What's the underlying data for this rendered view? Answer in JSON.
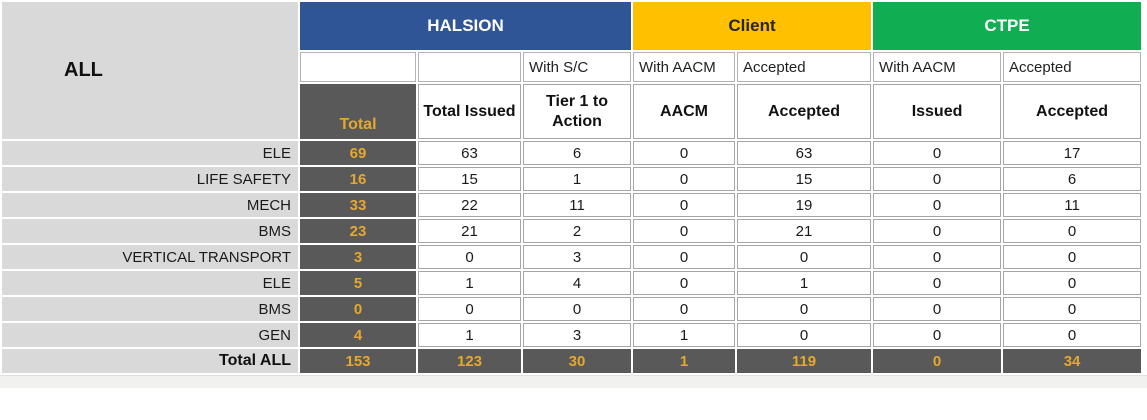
{
  "colors": {
    "halsion_blue": "#2F5597",
    "halsion_text": "#FFFFFF",
    "client_gold": "#FFC000",
    "client_text": "#262626",
    "ctpe_green": "#10AD52",
    "ctpe_text": "#FFFFFF",
    "dark_gray_cell": "#595959",
    "gold_text": "#E5A82F",
    "label_gray": "#D9D9D9"
  },
  "table": {
    "corner_label": "ALL",
    "groups": [
      {
        "label": "HALSION"
      },
      {
        "label": "Client"
      },
      {
        "label": "CTPE"
      }
    ],
    "subheaders": [
      "",
      "",
      "With S/C",
      "With AACM",
      "Accepted",
      "With AACM",
      "Accepted"
    ],
    "columns": [
      "Total",
      "Total Issued",
      "Tier 1 to Action",
      "AACM",
      "Accepted",
      "Issued",
      "Accepted"
    ],
    "rows": [
      {
        "label": "ELE",
        "values": [
          69,
          63,
          6,
          0,
          63,
          0,
          17
        ]
      },
      {
        "label": "LIFE SAFETY",
        "values": [
          16,
          15,
          1,
          0,
          15,
          0,
          6
        ]
      },
      {
        "label": "MECH",
        "values": [
          33,
          22,
          11,
          0,
          19,
          0,
          11
        ]
      },
      {
        "label": "BMS",
        "values": [
          23,
          21,
          2,
          0,
          21,
          0,
          0
        ]
      },
      {
        "label": "VERTICAL TRANSPORT",
        "values": [
          3,
          0,
          3,
          0,
          0,
          0,
          0
        ]
      },
      {
        "label": "ELE",
        "values": [
          5,
          1,
          4,
          0,
          1,
          0,
          0
        ]
      },
      {
        "label": "BMS",
        "values": [
          0,
          0,
          0,
          0,
          0,
          0,
          0
        ]
      },
      {
        "label": "GEN",
        "values": [
          4,
          1,
          3,
          1,
          0,
          0,
          0
        ]
      }
    ],
    "total_row": {
      "label": "Total ALL",
      "values": [
        153,
        123,
        30,
        1,
        119,
        0,
        34
      ]
    }
  }
}
